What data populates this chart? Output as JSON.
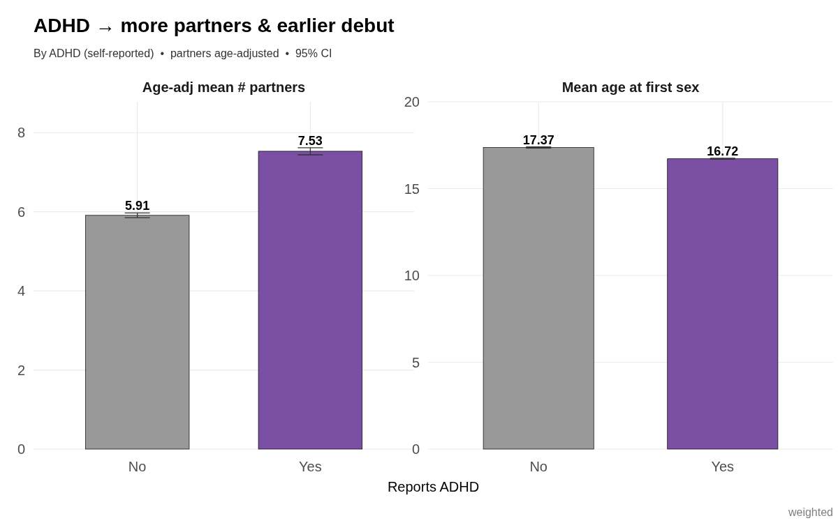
{
  "chart_data": [
    {
      "type": "other",
      "title": "ADHD → more partners & earlier debut",
      "subtitle": "By ADHD (self-reported)  •  partners age-adjusted  •  95% CI",
      "annotations": [
        "weighted"
      ]
    },
    {
      "type": "bar",
      "title": "Age-adj mean # partners",
      "xlabel": "Reports ADHD",
      "categories": [
        "No",
        "Yes"
      ],
      "values": [
        5.91,
        7.53
      ],
      "colors": [
        "#999999",
        "#7b4fa3"
      ],
      "errors": [
        0.06,
        0.09
      ],
      "ylim": [
        0,
        8.78
      ],
      "yticks": [
        0,
        2,
        4,
        6,
        8
      ],
      "grid": true,
      "data_labels": true
    },
    {
      "type": "bar",
      "title": "Mean age at first sex",
      "categories": [
        "No",
        "Yes"
      ],
      "values": [
        17.37,
        16.72
      ],
      "colors": [
        "#999999",
        "#7b4fa3"
      ],
      "errors": [
        0.03,
        0.03
      ],
      "ylim": [
        0,
        20
      ],
      "yticks": [
        0,
        5,
        10,
        15,
        20
      ],
      "grid": true,
      "data_labels": true
    }
  ]
}
